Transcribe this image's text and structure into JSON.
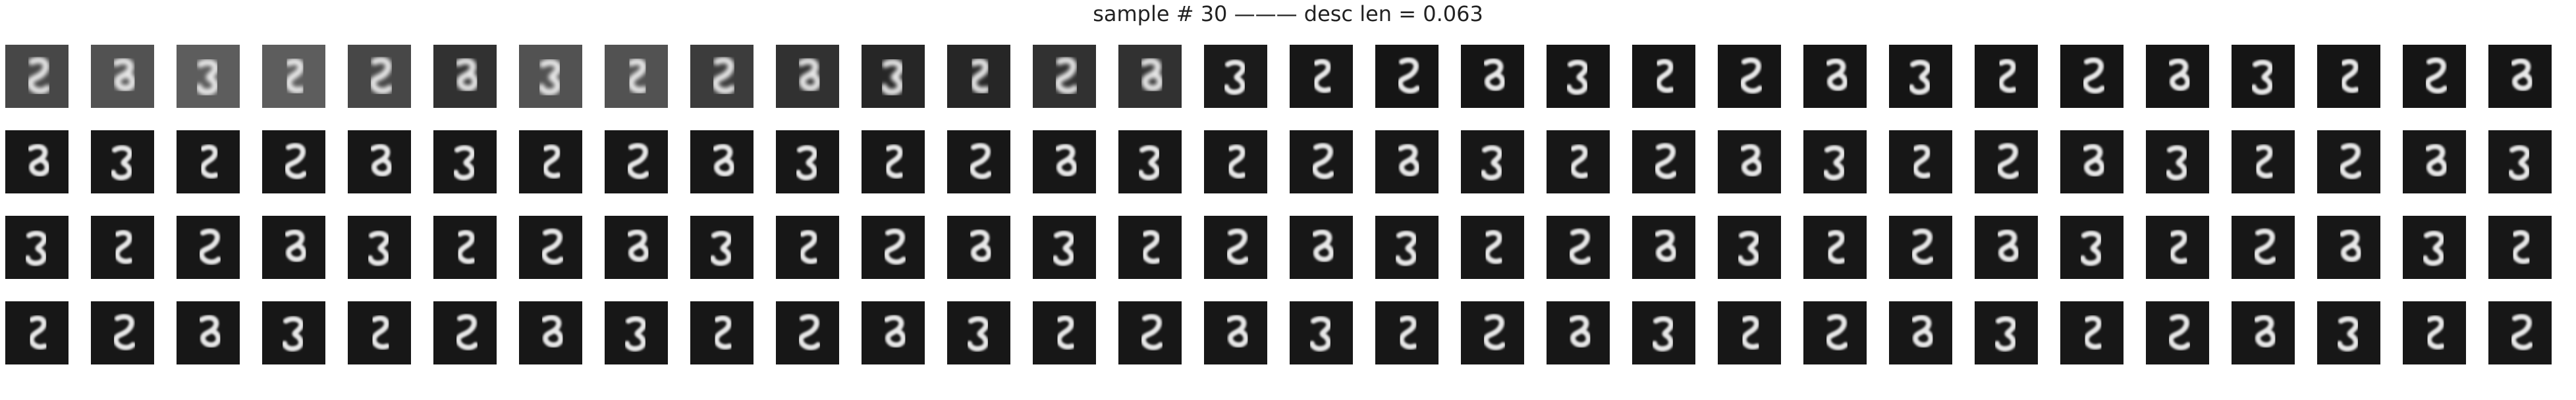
{
  "figure": {
    "title": "sample # 30 ——— desc len = 0.063"
  },
  "grid": {
    "rows": 4,
    "cols": 30
  },
  "digit_label": "8",
  "rows": [
    {
      "brightness": [
        0.55,
        0.65,
        0.75,
        0.75,
        0.55,
        0.35,
        0.65,
        0.65,
        0.45,
        0.35,
        0.25,
        0.25,
        0.35,
        0.35,
        0.15,
        0.12,
        0.1,
        0.1,
        0.1,
        0.1,
        0.1,
        0.1,
        0.1,
        0.1,
        0.1,
        0.1,
        0.1,
        0.1,
        0.1,
        0.1
      ]
    },
    {
      "brightness": [
        0.12,
        0.12,
        0.12,
        0.12,
        0.12,
        0.12,
        0.12,
        0.12,
        0.12,
        0.12,
        0.12,
        0.12,
        0.12,
        0.12,
        0.12,
        0.12,
        0.12,
        0.12,
        0.12,
        0.12,
        0.12,
        0.12,
        0.12,
        0.12,
        0.12,
        0.12,
        0.12,
        0.12,
        0.12,
        0.12
      ]
    },
    {
      "brightness": [
        0.12,
        0.12,
        0.12,
        0.12,
        0.12,
        0.12,
        0.12,
        0.12,
        0.12,
        0.12,
        0.12,
        0.12,
        0.12,
        0.12,
        0.12,
        0.12,
        0.12,
        0.12,
        0.12,
        0.12,
        0.12,
        0.12,
        0.12,
        0.12,
        0.12,
        0.12,
        0.12,
        0.12,
        0.12,
        0.12
      ]
    },
    {
      "brightness": [
        0.12,
        0.12,
        0.12,
        0.12,
        0.12,
        0.12,
        0.12,
        0.12,
        0.12,
        0.12,
        0.12,
        0.12,
        0.12,
        0.12,
        0.12,
        0.12,
        0.12,
        0.12,
        0.12,
        0.12,
        0.12,
        0.12,
        0.12,
        0.12,
        0.12,
        0.12,
        0.12,
        0.12,
        0.12,
        0.12
      ]
    }
  ]
}
